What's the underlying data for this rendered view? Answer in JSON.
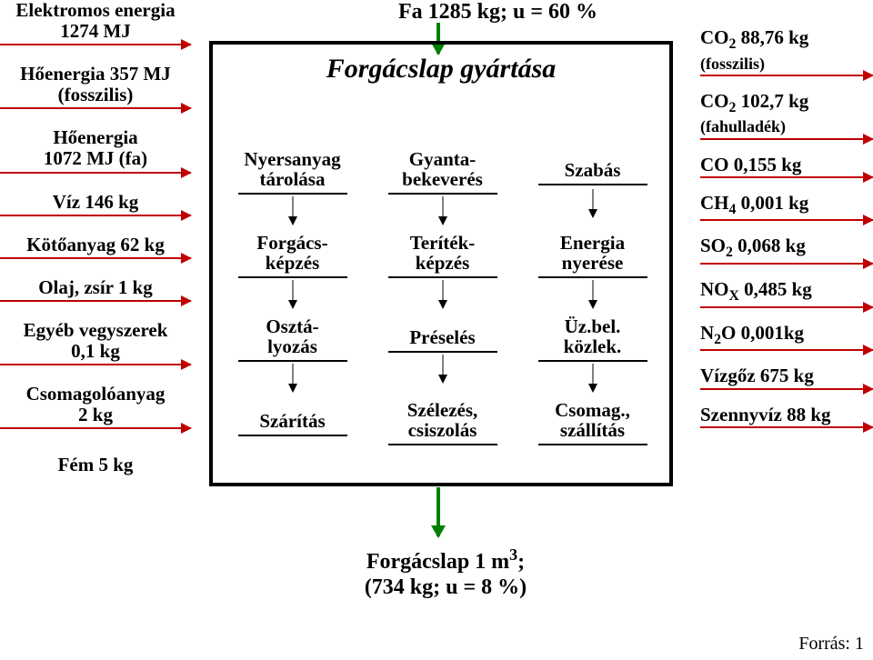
{
  "colors": {
    "arrow_red": "#c00000",
    "arrow_green": "#008000",
    "box_border": "#000000",
    "bg": "#ffffff"
  },
  "top_input": "Fa 1285 kg; u = 60 %",
  "process_title": "Forgácslap gyártása",
  "bottom_output_line1": "Forgácslap 1 m³;",
  "bottom_output_line2": "(734 kg;  u = 8 %)",
  "source": "Forrás: 1",
  "inputs": [
    {
      "line1": "Elektromos energia",
      "line2": "1274 MJ"
    },
    {
      "line1": "Hőenergia 357 MJ",
      "line2": "(fosszilis)"
    },
    {
      "line1": "Hőenergia",
      "line2": "1072 MJ (fa)"
    },
    {
      "line1": "Víz 146 kg",
      "line2": ""
    },
    {
      "line1": "Kötőanyag 62 kg",
      "line2": ""
    },
    {
      "line1": "Olaj, zsír 1 kg",
      "line2": ""
    },
    {
      "line1": "Egyéb vegyszerek",
      "line2": "0,1 kg"
    },
    {
      "line1": "Csomagolóanyag",
      "line2": "2 kg"
    },
    {
      "line1": "Fém 5 kg",
      "line2": ""
    }
  ],
  "outputs": [
    {
      "text": "CO₂  88,76 kg",
      "sub": "(fosszilis)"
    },
    {
      "text": "CO₂  102,7 kg",
      "sub": "(fahulladék)"
    },
    {
      "text": "CO  0,155 kg",
      "sub": ""
    },
    {
      "text": "CH₄ 0,001 kg",
      "sub": ""
    },
    {
      "text": "SO₂ 0,068 kg",
      "sub": ""
    },
    {
      "text": "NOₓ  0,485 kg",
      "sub": ""
    },
    {
      "text": "N₂O  0,001kg",
      "sub": ""
    },
    {
      "text": "Vízgőz 675 kg",
      "sub": ""
    },
    {
      "text": "Szennyvíz 88 kg",
      "sub": ""
    }
  ],
  "cells": {
    "c00": "Nyersanyag\ntárolása",
    "c01": "Gyanta-\nbekeverés",
    "c02": "Szabás",
    "c10": "Forgács-\nképzés",
    "c11": "Teríték-\nképzés",
    "c12": "Energia\nnyerése",
    "c20": "Osztá-\nlyozás",
    "c21": "Préselés",
    "c22": "Üz.bel.\nközlek.",
    "c30": "Szárítás",
    "c31": "Szélezés,\ncsiszolás",
    "c32": "Csomag.,\nszállítás"
  }
}
